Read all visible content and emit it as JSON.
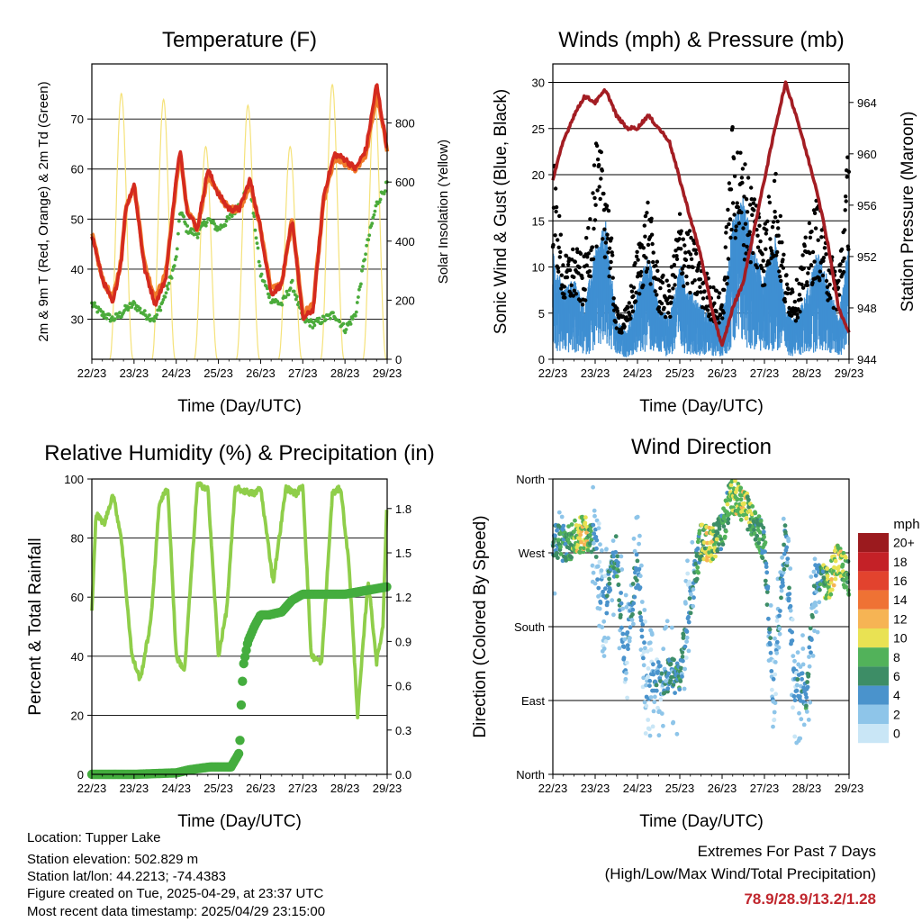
{
  "x_tick_labels": [
    "22/23",
    "23/23",
    "24/23",
    "25/23",
    "26/23",
    "27/23",
    "28/23",
    "29/23"
  ],
  "chart_data": [
    {
      "type": "line",
      "title": "Temperature (F)",
      "xlabel": "Time (Day/UTC)",
      "ylabel": "2m & 9m T (Red, Orange) & 2m Td (Green)",
      "ylabel_right": "Solar Insolation (Yellow)",
      "ylim": [
        22,
        81
      ],
      "ylim_right": [
        0,
        1000
      ],
      "yticks": [
        30,
        40,
        50,
        60,
        70
      ],
      "yticks_right": [
        0,
        200,
        400,
        600,
        800
      ],
      "x_days": [
        0,
        0.25,
        0.5,
        0.7,
        0.8,
        1.0,
        1.25,
        1.5,
        1.75,
        2.0,
        2.1,
        2.25,
        2.5,
        2.75,
        3.0,
        3.25,
        3.5,
        3.75,
        4.0,
        4.25,
        4.5,
        4.75,
        5.0,
        5.25,
        5.5,
        5.75,
        6.0,
        6.25,
        6.5,
        6.75,
        7.0
      ],
      "series": [
        {
          "name": "2m T",
          "color": "#d42a1f",
          "values": [
            47,
            38,
            33,
            42,
            52,
            57,
            40,
            33,
            38,
            58,
            64,
            52,
            48,
            60,
            55,
            52,
            52,
            58,
            48,
            35,
            37,
            50,
            30,
            32,
            55,
            63,
            62,
            60,
            64,
            77,
            64
          ]
        },
        {
          "name": "9m T",
          "color": "#f07a2a",
          "values": [
            47,
            38,
            34,
            42,
            52,
            57,
            41,
            34,
            39,
            57,
            63,
            52,
            48,
            59,
            55,
            52,
            52,
            57,
            48,
            36,
            37,
            50,
            31,
            33,
            54,
            62,
            61,
            60,
            63,
            75,
            64
          ]
        },
        {
          "name": "2m Td",
          "color": "#4bab3b",
          "values": [
            33,
            31,
            30,
            31,
            32,
            33,
            31,
            30,
            35,
            42,
            52,
            48,
            47,
            50,
            48,
            50,
            53,
            57,
            39,
            34,
            33,
            37,
            30,
            29,
            30,
            31,
            28,
            31,
            44,
            53,
            57
          ]
        },
        {
          "name": "Solar Insolation",
          "axis": "right",
          "color": "#f5e27a",
          "days": [
            0.7,
            1.7,
            2.7,
            3.7,
            4.7,
            5.7,
            6.7
          ],
          "peaks": [
            900,
            880,
            720,
            860,
            720,
            930,
            900
          ]
        }
      ]
    },
    {
      "type": "scatter",
      "title": "Winds (mph) & Pressure (mb)",
      "xlabel": "Time (Day/UTC)",
      "ylabel": "Sonic Wind & Gust (Blue, Black)",
      "ylabel_right": "Station Pressure (Maroon)",
      "ylim": [
        0,
        32
      ],
      "ylim_right": [
        944,
        967
      ],
      "yticks": [
        0,
        5,
        10,
        15,
        20,
        25,
        30
      ],
      "yticks_right": [
        944,
        948,
        952,
        956,
        960,
        964
      ],
      "x_days": [
        0,
        0.25,
        0.5,
        0.75,
        1.0,
        1.25,
        1.5,
        1.75,
        2.0,
        2.25,
        2.5,
        2.75,
        3.0,
        3.25,
        3.5,
        3.75,
        4.0,
        4.25,
        4.5,
        4.75,
        5.0,
        5.25,
        5.5,
        5.75,
        6.0,
        6.25,
        6.5,
        6.75,
        7.0
      ],
      "series": [
        {
          "name": "Station Pressure",
          "axis": "right",
          "color": "#a31d23",
          "values": [
            958,
            961,
            963,
            964.5,
            964,
            965,
            963,
            962,
            962,
            963,
            962,
            961,
            958,
            955,
            952,
            948,
            945,
            948,
            950,
            954,
            958,
            962,
            965.5,
            963,
            960,
            957,
            953,
            948,
            946
          ]
        },
        {
          "name": "Sonic Wind",
          "color": "#3f8fd2",
          "values": [
            8,
            5,
            6,
            4,
            8,
            10,
            3,
            2,
            5,
            8,
            4,
            3,
            7,
            5,
            4,
            3,
            3,
            10,
            12,
            8,
            6,
            9,
            4,
            3,
            5,
            8,
            6,
            3,
            9
          ]
        },
        {
          "name": "Gust",
          "color": "#000000",
          "values": [
            17,
            8,
            9,
            8,
            17,
            16,
            4,
            4,
            9,
            13,
            7,
            6,
            12,
            10,
            8,
            6,
            5,
            19,
            16,
            14,
            11,
            16,
            7,
            6,
            10,
            13,
            9,
            7,
            18
          ]
        }
      ]
    },
    {
      "type": "line",
      "title": "Relative Humidity (%) & Precipitation (in)",
      "xlabel": "Time (Day/UTC)",
      "ylabel": "Percent & Total Rainfall",
      "ylim": [
        0,
        100
      ],
      "ylim_right": [
        0,
        2.0
      ],
      "yticks": [
        0,
        20,
        40,
        60,
        80,
        100
      ],
      "yticks_right": [
        "0.0",
        "0.3",
        "0.6",
        "0.9",
        "1.2",
        "1.5",
        "1.8"
      ],
      "series": [
        {
          "name": "Relative Humidity",
          "color": "#8fce4a",
          "x_days": [
            0,
            0.1,
            0.3,
            0.5,
            0.7,
            0.95,
            1.15,
            1.4,
            1.6,
            1.8,
            2.0,
            2.2,
            2.5,
            2.75,
            3.0,
            3.2,
            3.4,
            3.6,
            3.85,
            4.0,
            4.3,
            4.6,
            4.85,
            5.0,
            5.2,
            5.45,
            5.7,
            5.9,
            6.1,
            6.3,
            6.55,
            6.75,
            6.9,
            7.0
          ],
          "values": [
            56,
            88,
            85,
            95,
            80,
            40,
            32,
            52,
            92,
            97,
            40,
            35,
            98,
            97,
            40,
            56,
            97,
            96,
            95,
            97,
            65,
            97,
            95,
            98,
            40,
            38,
            95,
            97,
            70,
            20,
            66,
            38,
            50,
            95
          ]
        },
        {
          "name": "Total Precipitation",
          "axis": "right",
          "color": "#44ad3e",
          "x_days": [
            0,
            1.0,
            2.0,
            2.3,
            2.8,
            3.3,
            3.5,
            3.55,
            3.6,
            3.7,
            3.85,
            4.0,
            4.2,
            4.5,
            4.75,
            5.0,
            6.0,
            7.0
          ],
          "values": [
            0.0,
            0.0,
            0.01,
            0.03,
            0.05,
            0.05,
            0.15,
            0.55,
            0.75,
            0.9,
            1.0,
            1.08,
            1.08,
            1.1,
            1.18,
            1.22,
            1.22,
            1.27
          ]
        }
      ]
    },
    {
      "type": "scatter",
      "title": "Wind Direction",
      "xlabel": "Time (Day/UTC)",
      "ylabel": "Direction (Colored By Speed)",
      "yticks": [
        "North",
        "East",
        "South",
        "West",
        "North"
      ],
      "colorbar_title": "mph",
      "colorbar_labels": [
        "0",
        "2",
        "4",
        "6",
        "8",
        "10",
        "12",
        "14",
        "16",
        "18",
        "20+"
      ],
      "colorbar_colors": [
        "#c9e6f6",
        "#8ec5e9",
        "#4a93cc",
        "#3d8d66",
        "#52b25a",
        "#e9e253",
        "#f6b454",
        "#ef7234",
        "#e2432e",
        "#c42127",
        "#9b1a1e"
      ],
      "x_days": [
        0,
        0.3,
        0.6,
        0.8,
        1.0,
        1.2,
        1.5,
        1.7,
        2.0,
        2.2,
        2.5,
        2.7,
        3.0,
        3.2,
        3.5,
        3.7,
        4.0,
        4.2,
        4.5,
        4.7,
        5.0,
        5.2,
        5.5,
        5.7,
        6.0,
        6.2,
        6.5,
        6.7,
        7.0
      ],
      "direction_deg": [
        285,
        280,
        290,
        295,
        280,
        200,
        270,
        140,
        260,
        110,
        115,
        120,
        118,
        200,
        285,
        280,
        295,
        340,
        330,
        310,
        280,
        110,
        290,
        110,
        100,
        240,
        230,
        260,
        240
      ],
      "speed_mph": [
        4,
        6,
        9,
        10,
        3,
        2,
        6,
        2,
        5,
        2,
        3,
        4,
        5,
        2,
        8,
        10,
        6,
        8,
        10,
        7,
        6,
        2,
        5,
        2,
        5,
        3,
        9,
        10,
        8
      ]
    }
  ],
  "footer": {
    "location": "Location: Tupper Lake",
    "elevation": "Station elevation: 502.829 m",
    "latlon": "Station lat/lon: 44.2213; -74.4383",
    "created": "Figure created on Tue, 2025-04-29, at 23:37 UTC",
    "recent": "Most recent data timestamp: 2025/04/29 23:15:00",
    "extremes_title": "Extremes For Past 7 Days",
    "extremes_subtitle": "(High/Low/Max Wind/Total Precipitation)",
    "extremes_values": "78.9/28.9/13.2/1.28"
  }
}
